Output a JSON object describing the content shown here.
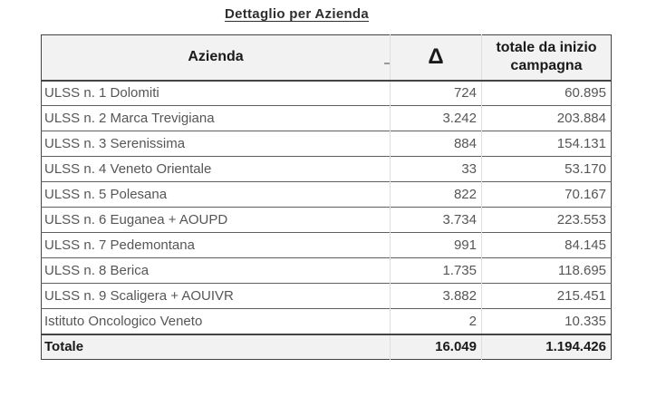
{
  "title": "Dettaglio per Azienda",
  "colors": {
    "header_bg": "#f2f2f2",
    "total_bg": "#f2f2f2",
    "row_bg": "#ffffff",
    "text_dark": "#1a1a1a",
    "text_gray": "#565656",
    "border_dark": "#444444",
    "border_row": "#5f5f5f",
    "border_light": "#dedede"
  },
  "table": {
    "columns": [
      {
        "key": "azienda",
        "label": "Azienda"
      },
      {
        "key": "delta",
        "label": "Δ"
      },
      {
        "key": "totale",
        "label": "totale da inizio campagna"
      }
    ],
    "rows": [
      {
        "azienda": "ULSS n. 1 Dolomiti",
        "delta": "724",
        "totale": "60.895"
      },
      {
        "azienda": "ULSS n. 2 Marca Trevigiana",
        "delta": "3.242",
        "totale": "203.884"
      },
      {
        "azienda": "ULSS n. 3 Serenissima",
        "delta": "884",
        "totale": "154.131"
      },
      {
        "azienda": "ULSS n. 4 Veneto Orientale",
        "delta": "33",
        "totale": "53.170"
      },
      {
        "azienda": "ULSS n. 5 Polesana",
        "delta": "822",
        "totale": "70.167"
      },
      {
        "azienda": "ULSS n. 6 Euganea + AOUPD",
        "delta": "3.734",
        "totale": "223.553"
      },
      {
        "azienda": "ULSS n. 7 Pedemontana",
        "delta": "991",
        "totale": "84.145"
      },
      {
        "azienda": "ULSS n. 8 Berica",
        "delta": "1.735",
        "totale": "118.695"
      },
      {
        "azienda": "ULSS n. 9 Scaligera + AOUIVR",
        "delta": "3.882",
        "totale": "215.451"
      },
      {
        "azienda": "Istituto Oncologico Veneto",
        "delta": "2",
        "totale": "10.335"
      }
    ],
    "total_row": {
      "azienda": "Totale",
      "delta": "16.049",
      "totale": "1.194.426"
    }
  }
}
